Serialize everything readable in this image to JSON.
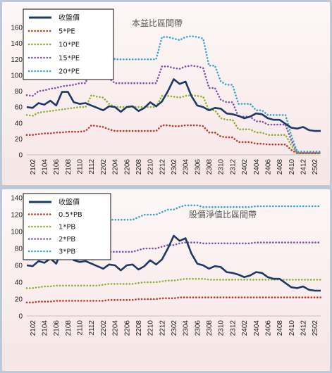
{
  "chart_data": [
    {
      "type": "line",
      "title": "本益比區間帶",
      "ylim": [
        0,
        160
      ],
      "yticks": [
        0,
        20,
        40,
        60,
        80,
        100,
        120,
        140,
        160
      ],
      "grid": false,
      "legend_position": "top-left",
      "x_tick_labels": [
        "2102",
        "2104",
        "2106",
        "2108",
        "2110",
        "2112",
        "2202",
        "2204",
        "2206",
        "2208",
        "2210",
        "2212",
        "2302",
        "2304",
        "2306",
        "2308",
        "2310",
        "2312",
        "2402",
        "2404",
        "2406",
        "2408",
        "2410",
        "2412",
        "2502"
      ],
      "x": [
        "2101",
        "2102",
        "2103",
        "2104",
        "2105",
        "2106",
        "2107",
        "2108",
        "2109",
        "2110",
        "2111",
        "2112",
        "2201",
        "2202",
        "2203",
        "2204",
        "2205",
        "2206",
        "2207",
        "2208",
        "2209",
        "2210",
        "2211",
        "2212",
        "2301",
        "2302",
        "2303",
        "2304",
        "2305",
        "2306",
        "2307",
        "2308",
        "2309",
        "2310",
        "2311",
        "2312",
        "2401",
        "2402",
        "2403",
        "2404",
        "2405",
        "2406",
        "2407",
        "2408",
        "2409",
        "2410",
        "2411",
        "2412",
        "2501",
        "2502",
        "2503"
      ],
      "series": [
        {
          "name": "收盤價",
          "color": "#1f3864",
          "style": "solid",
          "values": [
            60,
            59,
            65,
            63,
            68,
            62,
            79,
            79,
            66,
            64,
            65,
            62,
            59,
            56,
            61,
            60,
            54,
            60,
            61,
            55,
            59,
            66,
            61,
            67,
            80,
            95,
            89,
            92,
            74,
            62,
            60,
            56,
            59,
            58,
            52,
            51,
            49,
            46,
            48,
            52,
            51,
            46,
            44,
            44,
            39,
            34,
            33,
            35,
            31,
            30,
            30
          ]
        },
        {
          "name": "5*PE",
          "color": "#c0392b",
          "style": "dotted",
          "values": [
            25,
            25,
            26,
            27,
            27,
            28,
            28,
            29,
            29,
            29,
            30,
            37,
            36,
            35,
            32,
            30,
            30,
            30,
            30,
            30,
            30,
            30,
            30,
            37,
            37,
            36,
            36,
            37,
            37,
            37,
            36,
            28,
            28,
            23,
            22,
            22,
            16,
            16,
            16,
            14,
            14,
            13,
            13,
            13,
            13,
            6,
            2,
            2,
            2,
            2,
            2
          ]
        },
        {
          "name": "10*PE",
          "color": "#8db33a",
          "style": "dotted",
          "values": [
            50,
            49,
            53,
            54,
            55,
            56,
            57,
            58,
            59,
            60,
            60,
            75,
            73,
            72,
            64,
            60,
            60,
            60,
            60,
            60,
            60,
            60,
            60,
            74,
            74,
            73,
            72,
            74,
            75,
            74,
            73,
            56,
            56,
            46,
            44,
            44,
            32,
            32,
            32,
            28,
            28,
            25,
            25,
            25,
            25,
            12,
            2,
            2,
            2,
            2,
            2
          ]
        },
        {
          "name": "15*PE",
          "color": "#7e57a8",
          "style": "dotted",
          "values": [
            75,
            74,
            80,
            81,
            83,
            84,
            86,
            87,
            88,
            90,
            90,
            112,
            110,
            108,
            96,
            90,
            90,
            90,
            90,
            90,
            90,
            90,
            90,
            111,
            111,
            109,
            108,
            111,
            112,
            111,
            109,
            84,
            84,
            69,
            66,
            66,
            48,
            48,
            48,
            42,
            42,
            38,
            38,
            38,
            38,
            18,
            3,
            3,
            3,
            3,
            3
          ]
        },
        {
          "name": "20*PE",
          "color": "#3fa7c4",
          "style": "dotted",
          "values": [
            100,
            99,
            106,
            108,
            110,
            112,
            114,
            116,
            117,
            120,
            120,
            149,
            146,
            144,
            128,
            120,
            120,
            120,
            120,
            120,
            120,
            120,
            120,
            148,
            148,
            146,
            144,
            148,
            149,
            148,
            146,
            112,
            112,
            92,
            88,
            88,
            64,
            64,
            64,
            56,
            56,
            50,
            50,
            50,
            50,
            24,
            4,
            4,
            4,
            4,
            4
          ]
        }
      ]
    },
    {
      "type": "line",
      "title": "股價淨值比區間帶",
      "ylim": [
        0,
        140
      ],
      "yticks": [
        0,
        20,
        40,
        60,
        80,
        100,
        120,
        140
      ],
      "grid": false,
      "legend_position": "top-left",
      "x_tick_labels": [
        "2102",
        "2104",
        "2106",
        "2108",
        "2110",
        "2112",
        "2202",
        "2204",
        "2206",
        "2208",
        "2210",
        "2212",
        "2302",
        "2304",
        "2306",
        "2308",
        "2310",
        "2312",
        "2402",
        "2404",
        "2406",
        "2408",
        "2410",
        "2412",
        "2502"
      ],
      "x": [
        "2101",
        "2102",
        "2103",
        "2104",
        "2105",
        "2106",
        "2107",
        "2108",
        "2109",
        "2110",
        "2111",
        "2112",
        "2201",
        "2202",
        "2203",
        "2204",
        "2205",
        "2206",
        "2207",
        "2208",
        "2209",
        "2210",
        "2211",
        "2212",
        "2301",
        "2302",
        "2303",
        "2304",
        "2305",
        "2306",
        "2307",
        "2308",
        "2309",
        "2310",
        "2311",
        "2312",
        "2401",
        "2402",
        "2403",
        "2404",
        "2405",
        "2406",
        "2407",
        "2408",
        "2409",
        "2410",
        "2411",
        "2412",
        "2501",
        "2502",
        "2503"
      ],
      "series": [
        {
          "name": "收盤價",
          "color": "#1f3864",
          "style": "solid",
          "values": [
            60,
            59,
            65,
            63,
            68,
            62,
            79,
            79,
            66,
            64,
            65,
            62,
            59,
            56,
            61,
            60,
            54,
            60,
            61,
            55,
            59,
            66,
            61,
            67,
            80,
            95,
            89,
            92,
            74,
            62,
            60,
            56,
            59,
            58,
            52,
            51,
            49,
            46,
            48,
            52,
            51,
            46,
            44,
            44,
            39,
            34,
            33,
            35,
            31,
            30,
            30
          ]
        },
        {
          "name": "0.5*PB",
          "color": "#c0392b",
          "style": "dotted",
          "values": [
            16,
            16,
            17,
            17,
            17,
            18,
            18,
            18,
            18,
            18,
            18,
            18,
            18,
            18,
            19,
            19,
            19,
            19,
            19,
            20,
            20,
            20,
            20,
            21,
            21,
            21,
            22,
            22,
            22,
            22,
            22,
            22,
            22,
            22,
            22,
            22,
            22,
            22,
            22,
            22,
            22,
            22,
            22,
            22,
            22,
            22,
            22,
            22,
            22,
            22,
            22
          ]
        },
        {
          "name": "1*PB",
          "color": "#8db33a",
          "style": "dotted",
          "values": [
            33,
            33,
            34,
            35,
            35,
            36,
            36,
            36,
            36,
            36,
            36,
            36,
            36,
            37,
            38,
            38,
            38,
            38,
            38,
            39,
            40,
            40,
            40,
            41,
            42,
            42,
            43,
            44,
            44,
            44,
            44,
            43,
            43,
            43,
            43,
            43,
            43,
            43,
            43,
            43,
            43,
            43,
            43,
            43,
            43,
            43,
            43,
            43,
            43,
            43,
            43
          ]
        },
        {
          "name": "2*PB",
          "color": "#7e57a8",
          "style": "dotted",
          "values": [
            67,
            67,
            69,
            70,
            71,
            71,
            72,
            72,
            72,
            72,
            72,
            72,
            72,
            73,
            76,
            76,
            76,
            76,
            76,
            78,
            80,
            80,
            80,
            82,
            84,
            84,
            86,
            87,
            87,
            87,
            86,
            86,
            86,
            86,
            86,
            86,
            86,
            86,
            86,
            87,
            87,
            87,
            87,
            87,
            87,
            87,
            87,
            87,
            87,
            87,
            87
          ]
        },
        {
          "name": "3*PB",
          "color": "#3fa7c4",
          "style": "dotted",
          "values": [
            100,
            100,
            104,
            105,
            106,
            107,
            108,
            108,
            108,
            108,
            108,
            108,
            108,
            110,
            114,
            114,
            114,
            114,
            114,
            117,
            120,
            120,
            120,
            123,
            126,
            126,
            129,
            131,
            131,
            131,
            129,
            129,
            129,
            129,
            129,
            129,
            129,
            129,
            129,
            130,
            130,
            130,
            130,
            130,
            130,
            130,
            130,
            130,
            130,
            130,
            130
          ]
        }
      ]
    }
  ]
}
